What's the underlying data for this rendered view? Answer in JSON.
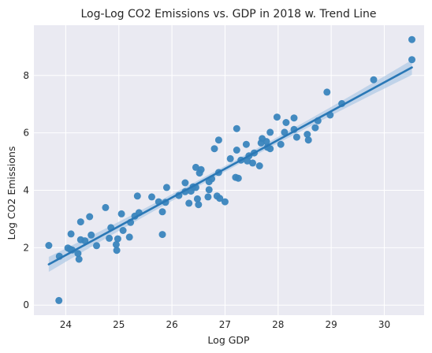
{
  "chart_data": {
    "type": "scatter",
    "title": "Log-Log CO2 Emissions vs. GDP in 2018 w. Trend Line",
    "xlabel": "Log GDP",
    "ylabel": "Log CO2 Emissions",
    "xlim": [
      23.4,
      30.75
    ],
    "ylim": [
      -0.35,
      9.75
    ],
    "xticks": [
      24,
      25,
      26,
      27,
      28,
      29,
      30
    ],
    "yticks": [
      0,
      2,
      4,
      6,
      8
    ],
    "grid": true,
    "legend": "none",
    "colors": {
      "plot_background": "#eaeaf2",
      "point": "#3a85bd",
      "trend_line": "#2a78b6",
      "confidence_band": "#a9c6e4"
    },
    "points": [
      [
        23.68,
        2.08
      ],
      [
        23.87,
        0.16
      ],
      [
        23.88,
        1.7
      ],
      [
        24.04,
        1.99
      ],
      [
        24.08,
        1.95
      ],
      [
        24.12,
        1.92
      ],
      [
        24.1,
        2.48
      ],
      [
        24.23,
        1.8
      ],
      [
        24.25,
        1.6
      ],
      [
        24.28,
        2.28
      ],
      [
        24.28,
        2.9
      ],
      [
        24.36,
        2.24
      ],
      [
        24.45,
        3.08
      ],
      [
        24.48,
        2.44
      ],
      [
        24.58,
        2.07
      ],
      [
        24.75,
        3.4
      ],
      [
        24.82,
        2.33
      ],
      [
        24.85,
        2.7
      ],
      [
        24.95,
        2.11
      ],
      [
        24.96,
        1.91
      ],
      [
        24.98,
        2.31
      ],
      [
        25.05,
        3.18
      ],
      [
        25.08,
        2.6
      ],
      [
        25.2,
        2.37
      ],
      [
        25.22,
        2.88
      ],
      [
        25.3,
        3.1
      ],
      [
        25.35,
        3.8
      ],
      [
        25.38,
        3.22
      ],
      [
        25.62,
        3.77
      ],
      [
        25.75,
        3.6
      ],
      [
        25.82,
        2.46
      ],
      [
        25.82,
        3.25
      ],
      [
        25.88,
        3.58
      ],
      [
        25.9,
        4.1
      ],
      [
        26.13,
        3.82
      ],
      [
        26.25,
        3.95
      ],
      [
        26.25,
        4.26
      ],
      [
        26.32,
        3.55
      ],
      [
        26.36,
        3.97
      ],
      [
        26.4,
        4.12
      ],
      [
        26.45,
        4.8
      ],
      [
        26.45,
        4.1
      ],
      [
        26.48,
        3.7
      ],
      [
        26.5,
        3.5
      ],
      [
        26.52,
        4.6
      ],
      [
        26.55,
        4.72
      ],
      [
        26.68,
        3.77
      ],
      [
        26.7,
        4.3
      ],
      [
        26.7,
        4.02
      ],
      [
        26.75,
        4.4
      ],
      [
        26.8,
        5.45
      ],
      [
        26.85,
        3.8
      ],
      [
        26.88,
        4.62
      ],
      [
        26.88,
        5.75
      ],
      [
        26.9,
        3.72
      ],
      [
        27.0,
        3.6
      ],
      [
        27.1,
        5.1
      ],
      [
        27.2,
        4.45
      ],
      [
        27.22,
        5.4
      ],
      [
        27.22,
        6.15
      ],
      [
        27.25,
        4.42
      ],
      [
        27.3,
        5.05
      ],
      [
        27.4,
        5.6
      ],
      [
        27.42,
        5.02
      ],
      [
        27.45,
        5.2
      ],
      [
        27.52,
        4.95
      ],
      [
        27.55,
        5.3
      ],
      [
        27.65,
        4.85
      ],
      [
        27.68,
        5.65
      ],
      [
        27.7,
        5.8
      ],
      [
        27.78,
        5.7
      ],
      [
        27.8,
        5.5
      ],
      [
        27.85,
        6.02
      ],
      [
        27.85,
        5.45
      ],
      [
        27.98,
        6.55
      ],
      [
        28.05,
        5.6
      ],
      [
        28.12,
        6.02
      ],
      [
        28.15,
        6.36
      ],
      [
        28.3,
        6.52
      ],
      [
        28.3,
        6.12
      ],
      [
        28.35,
        5.85
      ],
      [
        28.55,
        5.95
      ],
      [
        28.57,
        5.75
      ],
      [
        28.7,
        6.18
      ],
      [
        28.75,
        6.42
      ],
      [
        28.92,
        7.42
      ],
      [
        28.98,
        6.62
      ],
      [
        29.2,
        7.02
      ],
      [
        29.8,
        7.85
      ],
      [
        30.52,
        8.55
      ],
      [
        30.52,
        9.25
      ]
    ],
    "trend_line": {
      "x": [
        23.68,
        30.52
      ],
      "y": [
        1.42,
        8.28
      ]
    }
  }
}
